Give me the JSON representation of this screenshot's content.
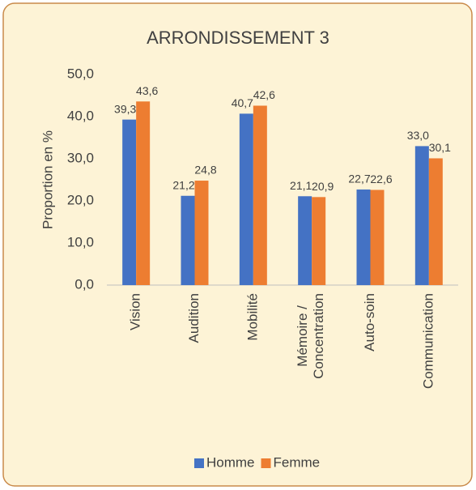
{
  "chart_data": {
    "type": "bar",
    "title": "ARRONDISSEMENT 3",
    "y_label": "Proportion en %",
    "categories": [
      "Vision",
      "Audition",
      "Mobilité",
      "Mémoire / Concentration",
      "Auto-soin",
      "Communication"
    ],
    "series": [
      {
        "name": "Homme",
        "color": "#4472c4",
        "values": [
          39.3,
          21.2,
          40.7,
          21.1,
          22.7,
          33.0
        ],
        "value_labels": [
          "39,3",
          "21,2",
          "40,7",
          "21,1",
          "22,7",
          "33,0"
        ]
      },
      {
        "name": "Femme",
        "color": "#ed7d31",
        "values": [
          43.6,
          24.8,
          42.6,
          20.9,
          22.6,
          30.1
        ],
        "value_labels": [
          "43,6",
          "24,8",
          "42,6",
          "20,9",
          "22,6",
          "30,1"
        ]
      }
    ],
    "ylim": [
      0,
      50
    ],
    "yticks": [
      {
        "value": 0,
        "label": "0,0"
      },
      {
        "value": 10,
        "label": "10,0"
      },
      {
        "value": 20,
        "label": "20,0"
      },
      {
        "value": 30,
        "label": "30,0"
      },
      {
        "value": 40,
        "label": "40,0"
      },
      {
        "value": 50,
        "label": "50,0"
      }
    ],
    "grid": false,
    "legend": "bottom"
  }
}
